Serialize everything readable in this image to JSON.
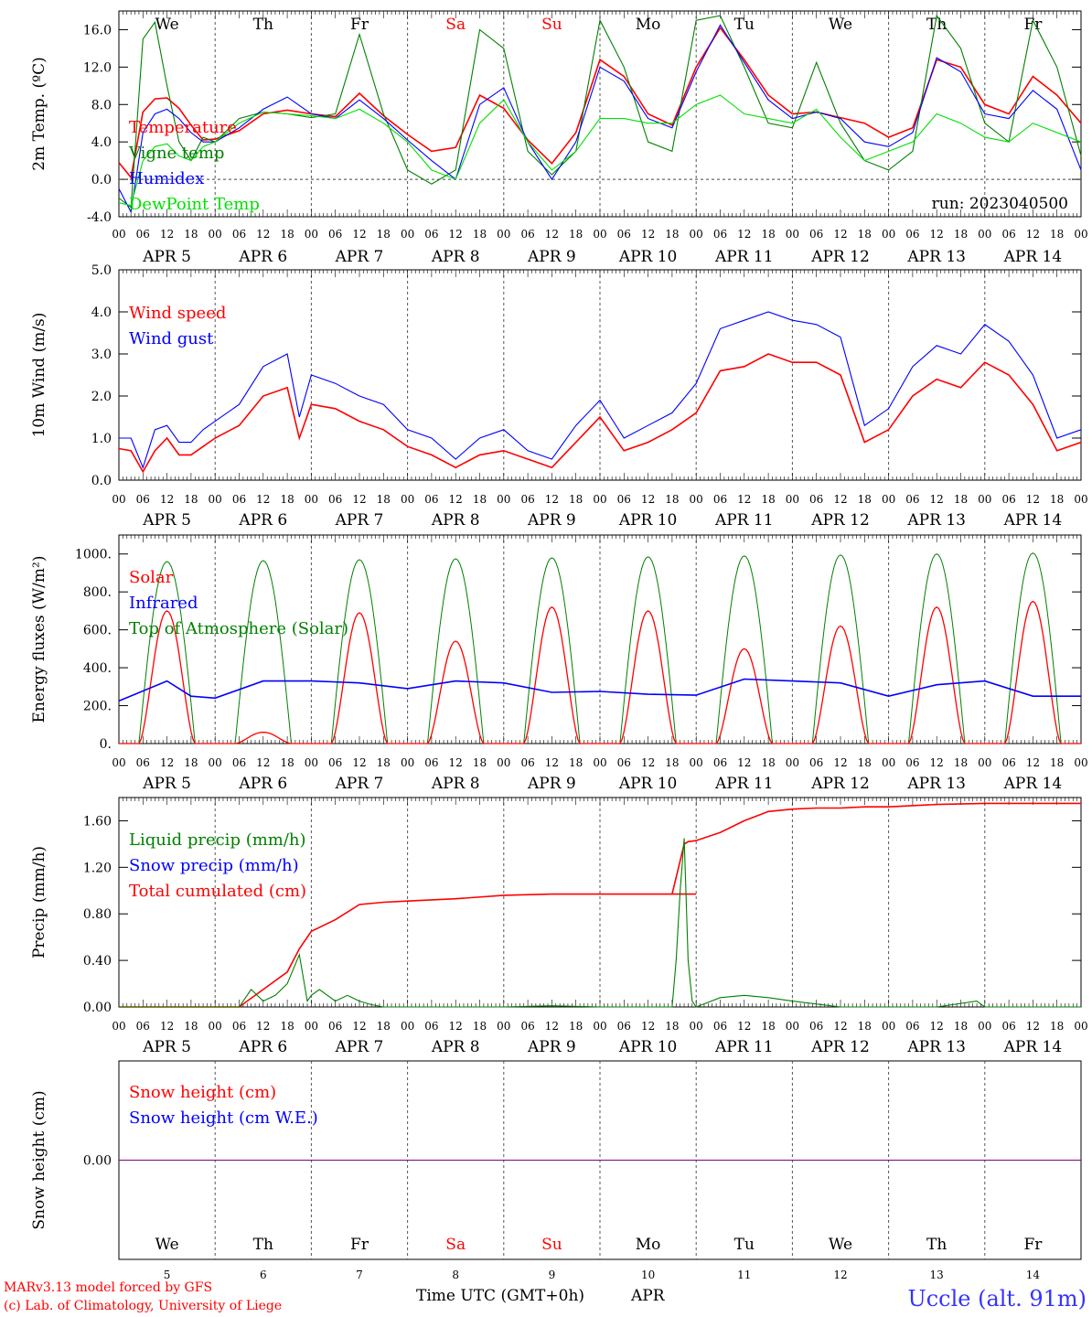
{
  "colors": {
    "red": "#ff0000",
    "green": "#008000",
    "blue": "#0000ff",
    "light_green": "#00e000",
    "purple": "#800080",
    "frame": "#000000"
  },
  "days": {
    "names": [
      "We",
      "Th",
      "Fr",
      "Sa",
      "Su",
      "Mo",
      "Tu",
      "We",
      "Th",
      "Fr"
    ],
    "weekend_index": [
      3,
      4
    ],
    "dates": [
      "5",
      "6",
      "7",
      "8",
      "9",
      "10",
      "11",
      "12",
      "13",
      "14"
    ],
    "month": "APR"
  },
  "hour_labels": [
    "00",
    "06",
    "12",
    "18"
  ],
  "footer": {
    "model": "MARv3.13 model forced by GFS",
    "lab": "(c) Lab. of Climatology, University of Liege",
    "axis_title": "Time UTC (GMT+0h)",
    "month": "APR",
    "station": "Uccle (alt. 91m)"
  },
  "chart_data": [
    {
      "id": "temperature",
      "type": "line",
      "ylabel": "2m Temp. (ºC)",
      "ylim": [
        -4,
        18
      ],
      "yticks": [
        -4,
        0,
        4,
        8,
        12,
        16
      ],
      "ytick_labels": [
        "-4.0",
        "0.0",
        "4.0",
        "8.0",
        "12.0",
        "16.0"
      ],
      "zero_line": true,
      "run_label": "run: 2023040500",
      "legend": [
        "Temperature",
        "Vigne temp",
        "Humidex",
        "DewPoint Temp"
      ],
      "x_unit": "hours since APR 5 00 UTC",
      "series": [
        {
          "name": "Temperature",
          "color": "red",
          "x": [
            0,
            3,
            6,
            9,
            12,
            15,
            18,
            21,
            24,
            30,
            36,
            42,
            48,
            54,
            60,
            66,
            72,
            78,
            84,
            90,
            96,
            102,
            108,
            114,
            120,
            126,
            132,
            138,
            144,
            150,
            156,
            162,
            168,
            174,
            180,
            186,
            192,
            198,
            204,
            210,
            216,
            222,
            228,
            234,
            240
          ],
          "y": [
            1.8,
            0.2,
            7.2,
            8.6,
            8.7,
            7.6,
            5.8,
            4.2,
            4.3,
            5.2,
            7.0,
            7.4,
            7.0,
            6.7,
            9.2,
            6.8,
            4.8,
            3.0,
            3.4,
            9.0,
            7.6,
            4.2,
            1.7,
            5.0,
            12.8,
            11.0,
            7.0,
            5.8,
            12.0,
            16.2,
            12.8,
            9.0,
            7.0,
            7.2,
            6.6,
            6.0,
            4.5,
            5.5,
            12.8,
            12.0,
            8.0,
            7.0,
            11.0,
            9.0,
            6.0
          ]
        },
        {
          "name": "Vigne temp",
          "color": "green",
          "x": [
            0,
            3,
            6,
            9,
            12,
            15,
            18,
            21,
            24,
            30,
            36,
            42,
            48,
            54,
            60,
            66,
            72,
            78,
            84,
            90,
            96,
            102,
            108,
            114,
            120,
            126,
            132,
            138,
            144,
            150,
            156,
            162,
            168,
            174,
            180,
            186,
            192,
            198,
            204,
            210,
            216,
            222,
            228,
            234,
            240
          ],
          "y": [
            -2.0,
            -3.0,
            15.0,
            16.8,
            10.0,
            4.0,
            2.0,
            4.5,
            4.0,
            6.5,
            7.2,
            7.0,
            6.6,
            7.0,
            15.5,
            7.0,
            1.0,
            -0.5,
            1.0,
            16.0,
            14.0,
            3.0,
            0.5,
            3.0,
            17.0,
            12.0,
            4.0,
            3.0,
            17.0,
            17.5,
            12.0,
            6.0,
            5.5,
            12.5,
            6.0,
            2.0,
            1.0,
            3.0,
            17.5,
            14.0,
            6.0,
            4.0,
            17.0,
            12.0,
            2.5
          ]
        },
        {
          "name": "Humidex",
          "color": "blue",
          "x": [
            0,
            3,
            6,
            9,
            12,
            15,
            18,
            21,
            24,
            30,
            36,
            42,
            48,
            54,
            60,
            66,
            72,
            78,
            84,
            90,
            96,
            102,
            108,
            114,
            120,
            126,
            132,
            138,
            144,
            150,
            156,
            162,
            168,
            174,
            180,
            186,
            192,
            198,
            204,
            210,
            216,
            222,
            228,
            234,
            240
          ],
          "y": [
            -1.0,
            -3.5,
            5.0,
            7.0,
            7.5,
            6.5,
            5.0,
            4.0,
            4.0,
            5.5,
            7.5,
            8.8,
            7.0,
            6.5,
            8.5,
            6.5,
            4.2,
            2.0,
            0.0,
            8.0,
            9.8,
            4.0,
            0.0,
            4.0,
            12.0,
            10.5,
            6.5,
            5.5,
            11.5,
            16.5,
            12.5,
            8.5,
            6.5,
            7.2,
            6.5,
            4.0,
            3.5,
            5.0,
            13.0,
            11.5,
            7.0,
            6.5,
            9.5,
            7.5,
            1.0
          ]
        },
        {
          "name": "DewPoint Temp",
          "color": "light_green",
          "x": [
            0,
            3,
            6,
            9,
            12,
            15,
            18,
            21,
            24,
            30,
            36,
            42,
            48,
            54,
            60,
            66,
            72,
            78,
            84,
            90,
            96,
            102,
            108,
            114,
            120,
            126,
            132,
            138,
            144,
            150,
            156,
            162,
            168,
            174,
            180,
            186,
            192,
            198,
            204,
            210,
            216,
            222,
            228,
            234,
            240
          ],
          "y": [
            -2.5,
            -2.8,
            2.0,
            3.5,
            3.8,
            2.5,
            2.0,
            3.5,
            4.0,
            6.0,
            7.2,
            7.0,
            6.8,
            6.5,
            7.5,
            6.0,
            4.0,
            1.0,
            0.0,
            6.0,
            8.5,
            4.0,
            1.0,
            3.0,
            6.5,
            6.5,
            6.0,
            6.0,
            8.0,
            9.0,
            7.0,
            6.5,
            6.0,
            7.5,
            4.5,
            2.0,
            3.0,
            4.0,
            7.0,
            6.0,
            4.5,
            4.0,
            6.0,
            5.0,
            4.0
          ]
        }
      ]
    },
    {
      "id": "wind",
      "type": "line",
      "ylabel": "10m Wind (m/s)",
      "ylim": [
        0,
        5
      ],
      "yticks": [
        0,
        1,
        2,
        3,
        4,
        5
      ],
      "ytick_labels": [
        "0.0",
        "1.0",
        "2.0",
        "3.0",
        "4.0",
        "5.0"
      ],
      "legend": [
        "Wind speed",
        "Wind gust"
      ],
      "x_unit": "hours since APR 5 00 UTC",
      "series": [
        {
          "name": "Wind speed",
          "color": "red",
          "x": [
            0,
            3,
            6,
            9,
            12,
            15,
            18,
            21,
            24,
            30,
            36,
            42,
            45,
            48,
            54,
            60,
            66,
            72,
            78,
            84,
            90,
            96,
            102,
            108,
            114,
            120,
            126,
            132,
            138,
            144,
            150,
            156,
            162,
            168,
            174,
            180,
            186,
            192,
            198,
            204,
            210,
            216,
            222,
            228,
            234,
            240
          ],
          "y": [
            0.75,
            0.7,
            0.2,
            0.7,
            1.0,
            0.6,
            0.6,
            0.8,
            1.0,
            1.3,
            2.0,
            2.2,
            1.0,
            1.8,
            1.7,
            1.4,
            1.2,
            0.8,
            0.6,
            0.3,
            0.6,
            0.7,
            0.5,
            0.3,
            0.9,
            1.5,
            0.7,
            0.9,
            1.2,
            1.6,
            2.6,
            2.7,
            3.0,
            2.8,
            2.8,
            2.5,
            0.9,
            1.2,
            2.0,
            2.4,
            2.2,
            2.8,
            2.5,
            1.8,
            0.7,
            0.9
          ]
        },
        {
          "name": "Wind gust",
          "color": "blue",
          "x": [
            0,
            3,
            6,
            9,
            12,
            15,
            18,
            21,
            24,
            30,
            36,
            42,
            45,
            48,
            54,
            60,
            66,
            72,
            78,
            84,
            90,
            96,
            102,
            108,
            114,
            120,
            126,
            132,
            138,
            144,
            150,
            156,
            162,
            168,
            174,
            180,
            186,
            192,
            198,
            204,
            210,
            216,
            222,
            228,
            234,
            240
          ],
          "y": [
            1.0,
            1.0,
            0.3,
            1.2,
            1.3,
            0.9,
            0.9,
            1.2,
            1.4,
            1.8,
            2.7,
            3.0,
            1.5,
            2.5,
            2.3,
            2.0,
            1.8,
            1.2,
            1.0,
            0.5,
            1.0,
            1.2,
            0.7,
            0.5,
            1.3,
            1.9,
            1.0,
            1.3,
            1.6,
            2.3,
            3.6,
            3.8,
            4.0,
            3.8,
            3.7,
            3.4,
            1.3,
            1.7,
            2.7,
            3.2,
            3.0,
            3.7,
            3.3,
            2.5,
            1.0,
            1.2
          ]
        }
      ]
    },
    {
      "id": "energy",
      "type": "line",
      "ylabel": "Energy fluxes (W/m²)",
      "ylim": [
        0,
        1100
      ],
      "yticks": [
        0,
        200,
        400,
        600,
        800,
        1000
      ],
      "ytick_labels": [
        "0.",
        "200.",
        "400.",
        "600.",
        "800.",
        "1000."
      ],
      "legend": [
        "Solar",
        "Infrared",
        "Top of Atmosphere (Solar)"
      ],
      "x_unit": "hours since APR 5 00 UTC",
      "toa_peaks": [
        960,
        965,
        970,
        975,
        980,
        985,
        990,
        995,
        1000,
        1005
      ],
      "solar_peaks": [
        700,
        60,
        690,
        540,
        720,
        700,
        500,
        620,
        720,
        750
      ],
      "infrared": {
        "x": [
          0,
          12,
          18,
          24,
          36,
          48,
          60,
          72,
          84,
          96,
          108,
          120,
          132,
          144,
          156,
          168,
          180,
          192,
          204,
          216,
          228,
          240
        ],
        "y": [
          225,
          330,
          250,
          240,
          330,
          330,
          320,
          290,
          330,
          320,
          270,
          275,
          260,
          255,
          340,
          330,
          320,
          250,
          310,
          330,
          250,
          250
        ]
      }
    },
    {
      "id": "precip",
      "type": "line",
      "ylabel": "Precip (mm/h)",
      "ylim": [
        0,
        1.8
      ],
      "yticks": [
        0,
        0.4,
        0.8,
        1.2,
        1.6
      ],
      "ytick_labels": [
        "0.00",
        "0.40",
        "0.80",
        "1.20",
        "1.60"
      ],
      "legend": [
        "Liquid precip (mm/h)",
        "Snow precip (mm/h)",
        "Total cumulated (cm)"
      ],
      "x_unit": "hours since APR 5 00 UTC",
      "series": [
        {
          "name": "Total cumulated (cm)",
          "color": "red",
          "x": [
            0,
            30,
            36,
            42,
            45,
            48,
            54,
            60,
            66,
            72,
            84,
            96,
            108,
            120,
            132,
            144,
            138,
            141,
            142,
            144,
            150,
            156,
            162,
            168,
            174,
            180,
            186,
            192,
            204,
            216,
            222,
            228,
            240
          ],
          "y": [
            0,
            0,
            0.15,
            0.3,
            0.5,
            0.65,
            0.75,
            0.88,
            0.9,
            0.91,
            0.93,
            0.96,
            0.97,
            0.97,
            0.97,
            0.97,
            0.97,
            1.4,
            1.42,
            1.43,
            1.5,
            1.6,
            1.68,
            1.7,
            1.71,
            1.71,
            1.72,
            1.72,
            1.74,
            1.75,
            1.75,
            1.75,
            1.75
          ]
        },
        {
          "name": "Liquid precip (mm/h)",
          "color": "green",
          "x": [
            0,
            30,
            33,
            36,
            39,
            42,
            45,
            47,
            48,
            50,
            54,
            57,
            60,
            63,
            66,
            72,
            84,
            96,
            108,
            120,
            132,
            138,
            139,
            140,
            141,
            142,
            143,
            144,
            150,
            156,
            162,
            168,
            180,
            192,
            204,
            214,
            216,
            222,
            240
          ],
          "y": [
            0,
            0,
            0.15,
            0.05,
            0.1,
            0.2,
            0.45,
            0.05,
            0.1,
            0.15,
            0.05,
            0.1,
            0.05,
            0.02,
            0.0,
            0.0,
            0.0,
            0.0,
            0.01,
            0.0,
            0.0,
            0.0,
            0.4,
            1.0,
            1.45,
            0.4,
            0.05,
            0.0,
            0.08,
            0.1,
            0.08,
            0.05,
            0.0,
            0.0,
            0.0,
            0.05,
            0.0,
            0.0,
            0.0
          ]
        }
      ]
    },
    {
      "id": "snow",
      "type": "line",
      "ylabel": "Snow height (cm)",
      "ylim": [
        -1,
        1
      ],
      "yticks": [
        0
      ],
      "ytick_labels": [
        "0.00"
      ],
      "legend": [
        "Snow height (cm)",
        "Snow height (cm W.E.)"
      ],
      "series": [
        {
          "name": "Snow height (cm)",
          "color": "purple",
          "x": [
            0,
            240
          ],
          "y": [
            0,
            0
          ]
        }
      ]
    }
  ]
}
